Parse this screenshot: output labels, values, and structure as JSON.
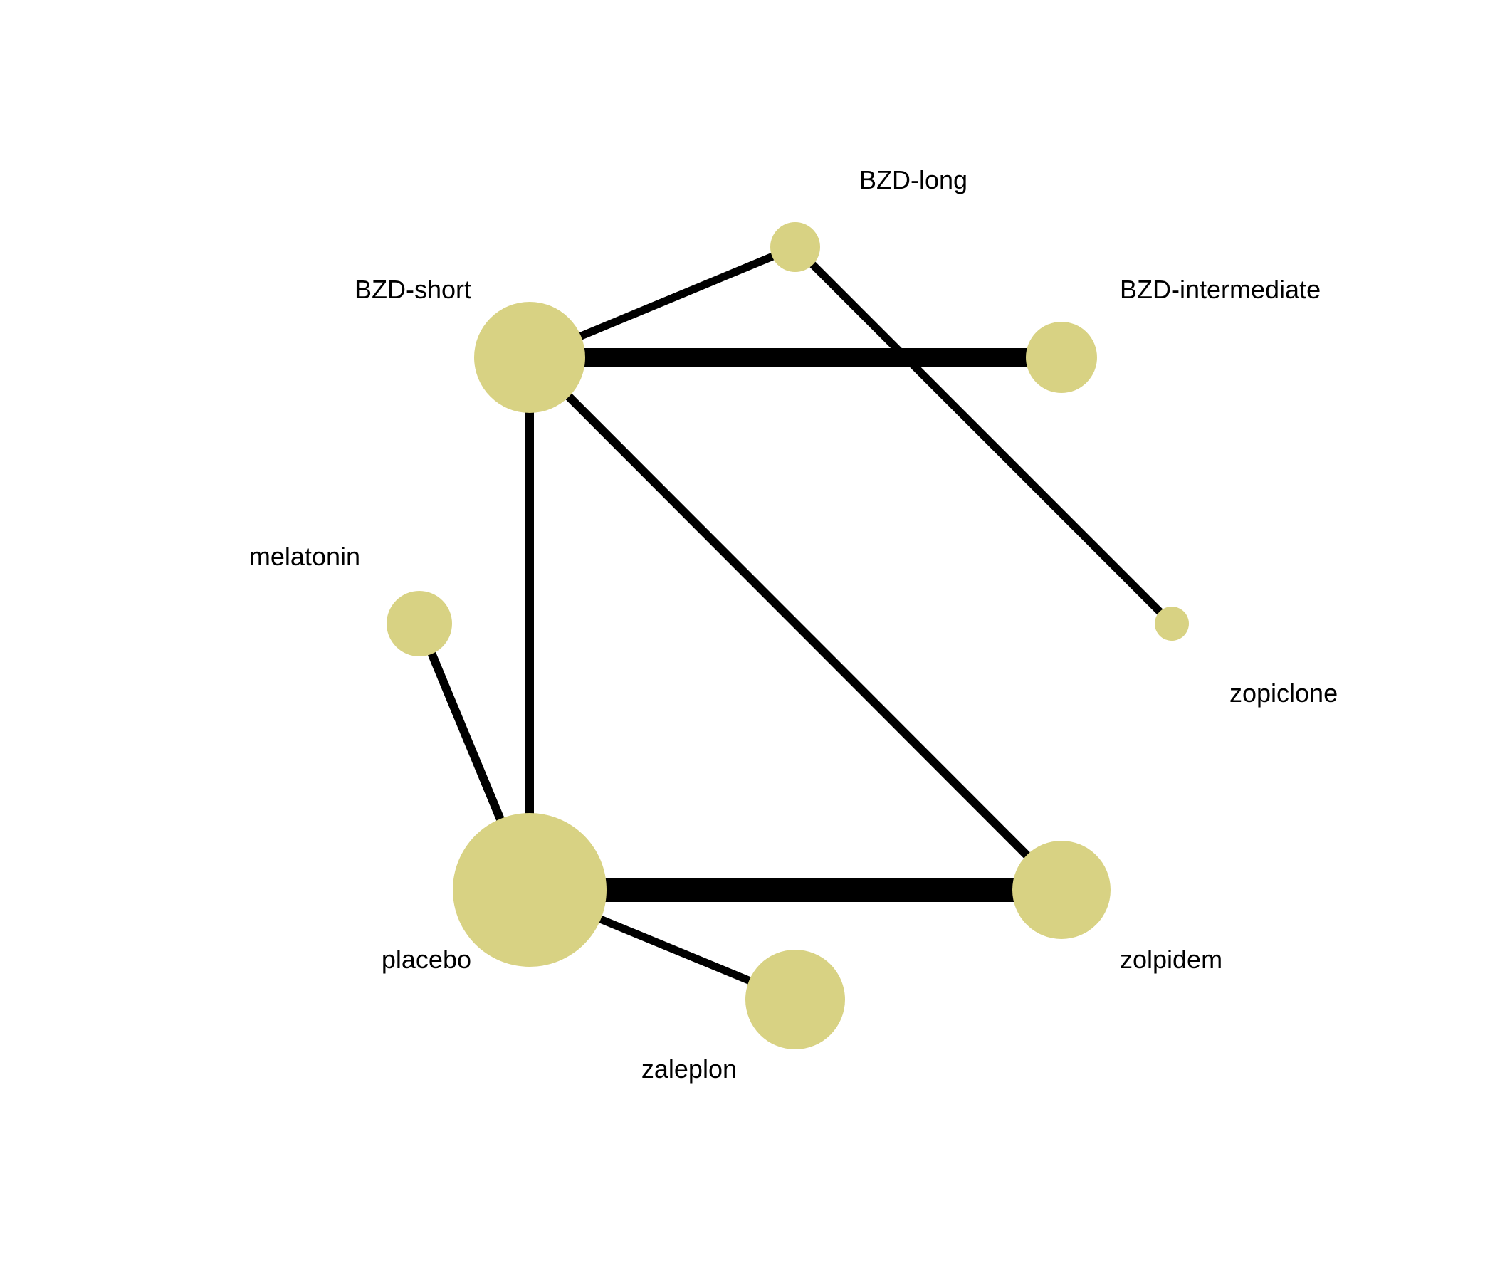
{
  "diagram": {
    "type": "network-graph",
    "node_color": "#d8d283",
    "edge_color": "#000000",
    "nodes": [
      {
        "id": "BZD-long",
        "label": "BZD-long"
      },
      {
        "id": "BZD-short",
        "label": "BZD-short"
      },
      {
        "id": "BZD-intermediate",
        "label": "BZD-intermediate"
      },
      {
        "id": "melatonin",
        "label": "melatonin"
      },
      {
        "id": "zopiclone",
        "label": "zopiclone"
      },
      {
        "id": "placebo",
        "label": "placebo"
      },
      {
        "id": "zolpidem",
        "label": "zolpidem"
      },
      {
        "id": "zaleplon",
        "label": "zaleplon"
      }
    ],
    "edges": [
      {
        "source": "BZD-short",
        "target": "BZD-long"
      },
      {
        "source": "BZD-long",
        "target": "zopiclone"
      },
      {
        "source": "BZD-short",
        "target": "BZD-intermediate"
      },
      {
        "source": "BZD-short",
        "target": "placebo"
      },
      {
        "source": "BZD-short",
        "target": "zolpidem"
      },
      {
        "source": "melatonin",
        "target": "placebo"
      },
      {
        "source": "placebo",
        "target": "zolpidem"
      },
      {
        "source": "placebo",
        "target": "zaleplon"
      }
    ]
  }
}
